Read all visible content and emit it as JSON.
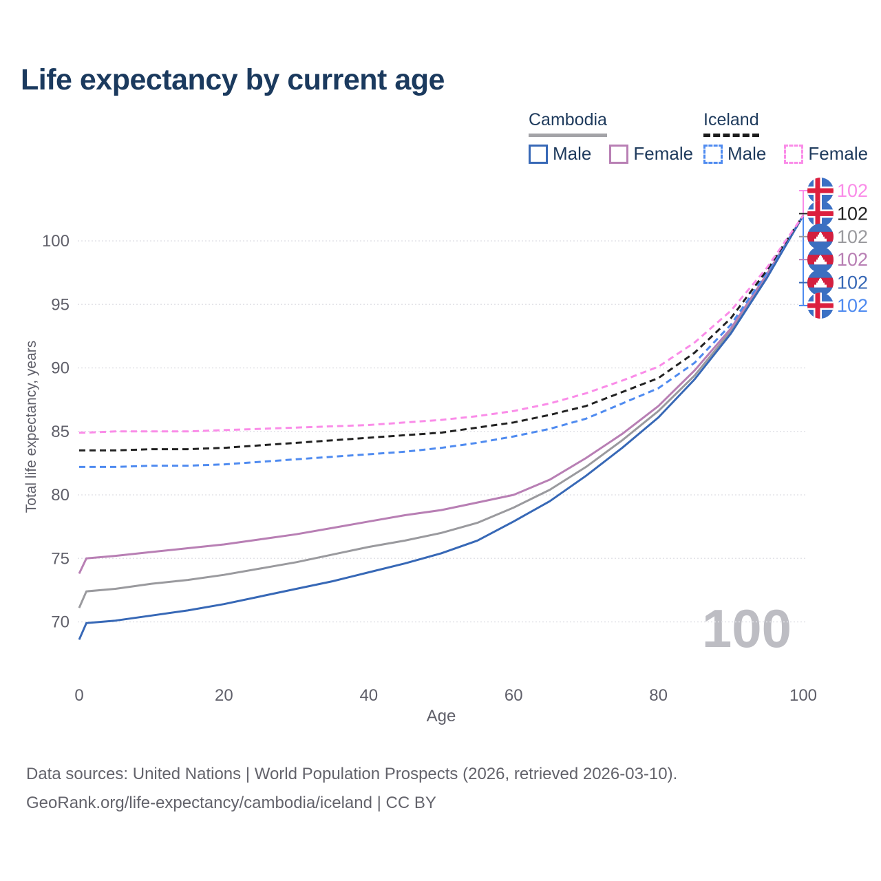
{
  "header": {
    "title": "Life expectancy by current age"
  },
  "legend": {
    "groups": [
      {
        "country": "Cambodia",
        "line_style": "solid",
        "underline_color": "#a3a3a7",
        "items": [
          {
            "label": "Male",
            "color": "#3768b6"
          },
          {
            "label": "Female",
            "color": "#b87fb4"
          }
        ]
      },
      {
        "country": "Iceland",
        "line_style": "dashed",
        "underline_color": "#1c1c1c",
        "items": [
          {
            "label": "Male",
            "color": "#4f8bf0"
          },
          {
            "label": "Female",
            "color": "#fa8ce8"
          }
        ]
      }
    ]
  },
  "chart_data": {
    "type": "line",
    "title": "Life expectancy by current age",
    "xlabel": "Age",
    "ylabel": "Total life expectancy, years",
    "xlim": [
      0,
      100
    ],
    "ylim_displayed": [
      68,
      103
    ],
    "x_ticks": [
      0,
      20,
      40,
      60,
      80,
      100
    ],
    "y_ticks": [
      70,
      75,
      80,
      85,
      90,
      95,
      100
    ],
    "grid": "horizontal-dotted",
    "legend_position": "top-right",
    "age_counter_watermark": "100",
    "ages": [
      0,
      1,
      5,
      10,
      15,
      20,
      25,
      30,
      35,
      40,
      45,
      50,
      55,
      60,
      65,
      70,
      75,
      80,
      85,
      90,
      95,
      100
    ],
    "series": [
      {
        "name": "Cambodia Total",
        "country": "Cambodia",
        "sex": "total",
        "color": "#9a9a9e",
        "dashed": false,
        "values": [
          71.1,
          72.4,
          72.6,
          73.0,
          73.3,
          73.7,
          74.2,
          74.7,
          75.3,
          75.9,
          76.4,
          77.0,
          77.8,
          79.0,
          80.4,
          82.2,
          84.3,
          86.6,
          89.4,
          92.9,
          97.2,
          102
        ]
      },
      {
        "name": "Cambodia Female",
        "country": "Cambodia",
        "sex": "female",
        "color": "#b87fb4",
        "dashed": false,
        "values": [
          73.8,
          75.0,
          75.2,
          75.5,
          75.8,
          76.1,
          76.5,
          76.9,
          77.4,
          77.9,
          78.4,
          78.8,
          79.4,
          80.0,
          81.2,
          82.9,
          84.8,
          87.0,
          89.8,
          93.1,
          97.4,
          102
        ]
      },
      {
        "name": "Cambodia Male",
        "country": "Cambodia",
        "sex": "male",
        "color": "#3768b6",
        "dashed": false,
        "values": [
          68.6,
          69.9,
          70.1,
          70.5,
          70.9,
          71.4,
          72.0,
          72.6,
          73.2,
          73.9,
          74.6,
          75.4,
          76.4,
          77.9,
          79.5,
          81.5,
          83.7,
          86.1,
          89.1,
          92.7,
          97.1,
          102
        ]
      },
      {
        "name": "Iceland Male",
        "country": "Iceland",
        "sex": "male",
        "color": "#4f8bf0",
        "dashed": true,
        "values": [
          82.2,
          82.2,
          82.2,
          82.3,
          82.3,
          82.4,
          82.6,
          82.8,
          83.0,
          83.2,
          83.4,
          83.7,
          84.1,
          84.6,
          85.2,
          86.0,
          87.2,
          88.4,
          90.4,
          93.4,
          97.5,
          102
        ]
      },
      {
        "name": "Iceland Total",
        "country": "Iceland",
        "sex": "total",
        "color": "#222222",
        "dashed": true,
        "values": [
          83.5,
          83.5,
          83.5,
          83.6,
          83.6,
          83.7,
          83.9,
          84.1,
          84.3,
          84.5,
          84.7,
          84.9,
          85.3,
          85.7,
          86.3,
          87.0,
          88.1,
          89.2,
          91.2,
          93.9,
          97.7,
          102
        ]
      },
      {
        "name": "Iceland Female",
        "country": "Iceland",
        "sex": "female",
        "color": "#fa8ce8",
        "dashed": true,
        "values": [
          84.9,
          84.9,
          85.0,
          85.0,
          85.0,
          85.1,
          85.2,
          85.3,
          85.4,
          85.5,
          85.7,
          85.9,
          86.2,
          86.6,
          87.2,
          88.0,
          89.0,
          90.1,
          92.0,
          94.5,
          97.9,
          102
        ]
      }
    ],
    "end_labels": [
      {
        "flag": "iceland",
        "value": "102",
        "color": "#fa8ce8",
        "series": "Iceland Female"
      },
      {
        "flag": "iceland",
        "value": "102",
        "color": "#222222",
        "series": "Iceland Total"
      },
      {
        "flag": "cambodia",
        "value": "102",
        "color": "#9a9a9e",
        "series": "Cambodia Total"
      },
      {
        "flag": "cambodia",
        "value": "102",
        "color": "#b87fb4",
        "series": "Cambodia Female"
      },
      {
        "flag": "cambodia",
        "value": "102",
        "color": "#3768b6",
        "series": "Cambodia Male"
      },
      {
        "flag": "iceland",
        "value": "102",
        "color": "#4f8bf0",
        "series": "Iceland Male"
      }
    ]
  },
  "footer": {
    "line1": "Data sources: United Nations | World Population Prospects (2026, retrieved 2026-03-10).",
    "line2": "GeoRank.org/life-expectancy/cambodia/iceland | CC BY"
  }
}
